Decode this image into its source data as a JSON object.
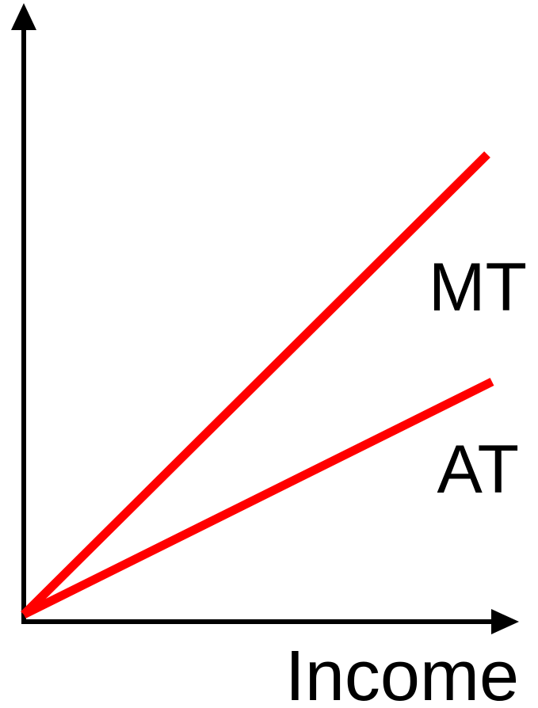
{
  "curves": [
    {
      "label": "MT"
    },
    {
      "label": "AT"
    }
  ],
  "x_axis": {
    "label": "Income"
  }
}
